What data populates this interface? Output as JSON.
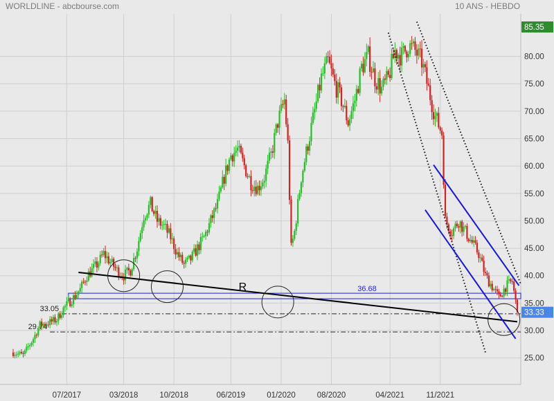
{
  "header": {
    "title": "WORLDLINE - abcbourse.com",
    "period": "10 ANS - HEBDO"
  },
  "chart_data": {
    "type": "candlestick",
    "title": "WORLDLINE - abcbourse.com",
    "subtitle": "10 ANS - HEBDO",
    "ylim": [
      23.2,
      88.0
    ],
    "y_ticks": [
      25,
      30,
      35,
      40,
      45,
      50,
      55,
      60,
      65,
      70,
      75,
      80
    ],
    "y_tick_labels": [
      "25.00",
      "30.00",
      "35.00",
      "40.00",
      "45.00",
      "50.00",
      "55.00",
      "60.00",
      "65.00",
      "70.00",
      "75.00",
      "80.00"
    ],
    "x_ticks": [
      {
        "label": "07/2017",
        "week": 76
      },
      {
        "label": "03/2018",
        "week": 110
      },
      {
        "label": "10/2018",
        "week": 140
      },
      {
        "label": "06/2019",
        "week": 174
      },
      {
        "label": "01/2020",
        "week": 204
      },
      {
        "label": "08/2020",
        "week": 234
      },
      {
        "label": "04/2021",
        "week": 269
      },
      {
        "label": "11/2021",
        "week": 299
      }
    ],
    "week_range": [
      44,
      345
    ],
    "close_path": [
      [
        44,
        26.0
      ],
      [
        50,
        25.5
      ],
      [
        56,
        28.5
      ],
      [
        60,
        31.0
      ],
      [
        66,
        31.5
      ],
      [
        70,
        32.0
      ],
      [
        74,
        34.0
      ],
      [
        80,
        36.0
      ],
      [
        84,
        37.5
      ],
      [
        88,
        40.0
      ],
      [
        94,
        42.0
      ],
      [
        98,
        44.0
      ],
      [
        102,
        42.5
      ],
      [
        106,
        41.0
      ],
      [
        110,
        40.0
      ],
      [
        114,
        41.0
      ],
      [
        118,
        45.0
      ],
      [
        122,
        51.0
      ],
      [
        126,
        53.0
      ],
      [
        130,
        50.0
      ],
      [
        134,
        49.0
      ],
      [
        138,
        47.0
      ],
      [
        142,
        44.0
      ],
      [
        146,
        42.0
      ],
      [
        150,
        43.0
      ],
      [
        154,
        45.0
      ],
      [
        158,
        47.0
      ],
      [
        162,
        50.0
      ],
      [
        166,
        53.0
      ],
      [
        170,
        58.0
      ],
      [
        174,
        62.0
      ],
      [
        178,
        63.0
      ],
      [
        182,
        60.0
      ],
      [
        186,
        57.0
      ],
      [
        190,
        56.0
      ],
      [
        194,
        58.0
      ],
      [
        198,
        62.0
      ],
      [
        202,
        68.0
      ],
      [
        206,
        72.0
      ],
      [
        208,
        64.0
      ],
      [
        210,
        45.0
      ],
      [
        212,
        48.0
      ],
      [
        216,
        58.0
      ],
      [
        220,
        64.0
      ],
      [
        224,
        70.0
      ],
      [
        228,
        76.0
      ],
      [
        232,
        79.0
      ],
      [
        236,
        75.0
      ],
      [
        240,
        72.0
      ],
      [
        244,
        68.0
      ],
      [
        248,
        72.0
      ],
      [
        252,
        78.0
      ],
      [
        256,
        80.0
      ],
      [
        260,
        76.0
      ],
      [
        264,
        74.0
      ],
      [
        268,
        76.0
      ],
      [
        272,
        81.0
      ],
      [
        276,
        80.0
      ],
      [
        280,
        82.0
      ],
      [
        284,
        81.0
      ],
      [
        288,
        79.0
      ],
      [
        292,
        74.0
      ],
      [
        296,
        69.0
      ],
      [
        300,
        66.0
      ],
      [
        302,
        50.0
      ],
      [
        306,
        48.0
      ],
      [
        310,
        50.0
      ],
      [
        314,
        48.0
      ],
      [
        318,
        46.0
      ],
      [
        322,
        44.0
      ],
      [
        326,
        40.0
      ],
      [
        330,
        38.0
      ],
      [
        334,
        36.0
      ],
      [
        338,
        38.0
      ],
      [
        342,
        39.0
      ],
      [
        345,
        33.33
      ]
    ],
    "current_price": {
      "value": 33.33,
      "label": "33.33",
      "color": "#4a86e8"
    },
    "high_marker": {
      "value": 85.35,
      "label": "85.35",
      "color": "#2e8b2e"
    },
    "support_zone": {
      "low": 35.8,
      "high": 36.8,
      "label": "36.68",
      "from_week": 77,
      "color": "#1f1fdd"
    },
    "dash_dot_levels": [
      {
        "value": 33.05,
        "label": "33.05",
        "from_week": 73
      },
      {
        "value": 29.74,
        "label": "29.74",
        "from_week": 66
      }
    ],
    "neckline": {
      "from": [
        83,
        40.6
      ],
      "to": [
        345,
        31.6
      ],
      "label": "R",
      "label_week": 181,
      "label_value": 37.3
    },
    "dotted_lines": [
      {
        "from": [
          268,
          84.3
        ],
        "to": [
          326,
          26.0
        ]
      },
      {
        "from": [
          285,
          86.3
        ],
        "to": [
          347,
          38.5
        ]
      }
    ],
    "blue_trend_lines": [
      {
        "from": [
          295,
          60.2
        ],
        "to": [
          346,
          38.2
        ]
      },
      {
        "from": [
          290,
          52.0
        ],
        "to": [
          344,
          28.5
        ]
      }
    ],
    "circles": [
      {
        "week": 110,
        "value": 40.0
      },
      {
        "week": 136,
        "value": 38.0
      },
      {
        "week": 202,
        "value": 35.2
      },
      {
        "week": 337,
        "value": 32.0
      }
    ],
    "colors": {
      "up": "#22c022",
      "down": "#d42020",
      "grid": "#cfcfcf",
      "neckline": "#000000",
      "trend_blue": "#1515e0"
    }
  }
}
